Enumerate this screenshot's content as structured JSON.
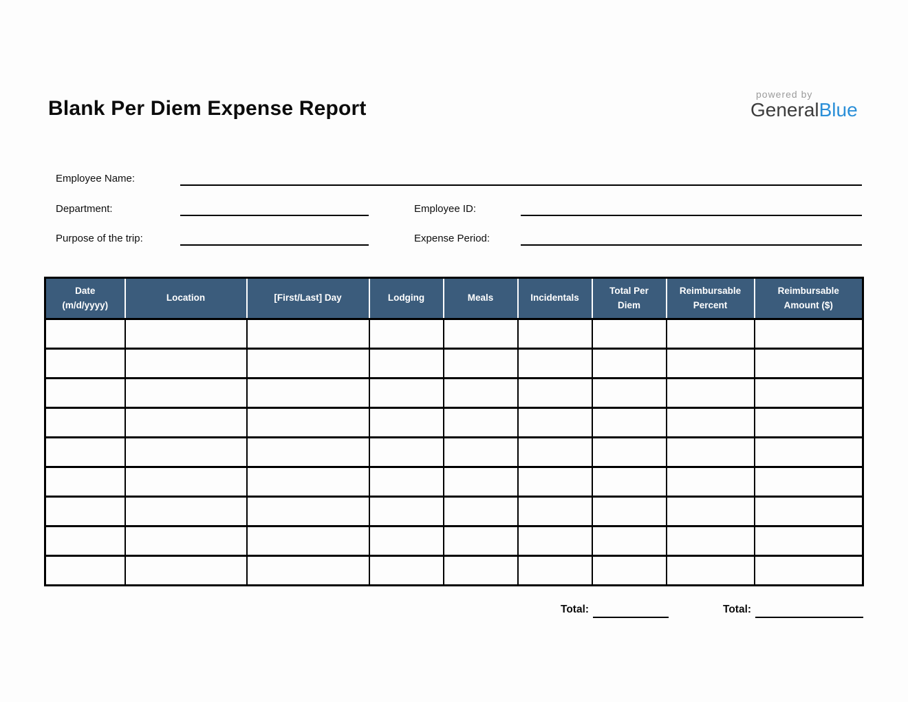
{
  "header": {
    "title": "Blank Per Diem Expense Report",
    "logo": {
      "powered_by": "powered by",
      "brand_part_dark": "General",
      "brand_part_blue": "Blue"
    }
  },
  "form": {
    "employee_name": {
      "label": "Employee Name:",
      "value": ""
    },
    "department": {
      "label": "Department:",
      "value": ""
    },
    "employee_id": {
      "label": "Employee ID:",
      "value": ""
    },
    "purpose": {
      "label": "Purpose of the trip:",
      "value": ""
    },
    "expense_period": {
      "label": "Expense Period:",
      "value": ""
    }
  },
  "table": {
    "columns": [
      "Date\n(m/d/yyyy)",
      "Location",
      "[First/Last] Day",
      "Lodging",
      "Meals",
      "Incidentals",
      "Total Per\nDiem",
      "Reimbursable\nPercent",
      "Reimbursable\nAmount ($)"
    ],
    "rows": [
      [
        "",
        "",
        "",
        "",
        "",
        "",
        "",
        "",
        ""
      ],
      [
        "",
        "",
        "",
        "",
        "",
        "",
        "",
        "",
        ""
      ],
      [
        "",
        "",
        "",
        "",
        "",
        "",
        "",
        "",
        ""
      ],
      [
        "",
        "",
        "",
        "",
        "",
        "",
        "",
        "",
        ""
      ],
      [
        "",
        "",
        "",
        "",
        "",
        "",
        "",
        "",
        ""
      ],
      [
        "",
        "",
        "",
        "",
        "",
        "",
        "",
        "",
        ""
      ],
      [
        "",
        "",
        "",
        "",
        "",
        "",
        "",
        "",
        ""
      ],
      [
        "",
        "",
        "",
        "",
        "",
        "",
        "",
        "",
        ""
      ],
      [
        "",
        "",
        "",
        "",
        "",
        "",
        "",
        "",
        ""
      ]
    ]
  },
  "totals": {
    "per_diem": {
      "label": "Total:",
      "value": ""
    },
    "reimbursable": {
      "label": "Total:",
      "value": ""
    }
  },
  "colors": {
    "table_header_bg": "#3B5C7C",
    "brand_blue": "#2B8FD8",
    "powered_by_gray": "#9B9B9B",
    "border_black": "#000000",
    "page_background": "#FDFDFD"
  }
}
